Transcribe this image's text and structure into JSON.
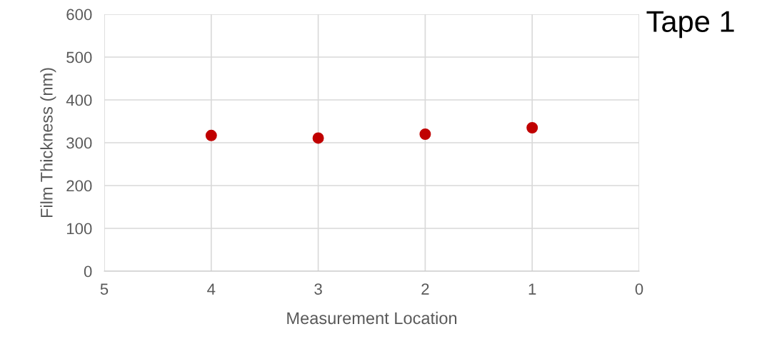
{
  "chart_data": {
    "type": "scatter",
    "title": "Tape 1",
    "xlabel": "Measurement Location",
    "ylabel": "Film Thickness (nm)",
    "x": [
      4,
      3,
      2,
      1
    ],
    "series": [
      {
        "color": "#c00000",
        "values": [
          317,
          311,
          320,
          335
        ]
      }
    ],
    "xlim": [
      5,
      0
    ],
    "xticks": [
      5,
      4,
      3,
      2,
      1,
      0
    ],
    "ylim": [
      0,
      600
    ],
    "yticks": [
      0,
      100,
      200,
      300,
      400,
      500,
      600
    ],
    "grid": true,
    "marker": "circle",
    "legend": false
  }
}
